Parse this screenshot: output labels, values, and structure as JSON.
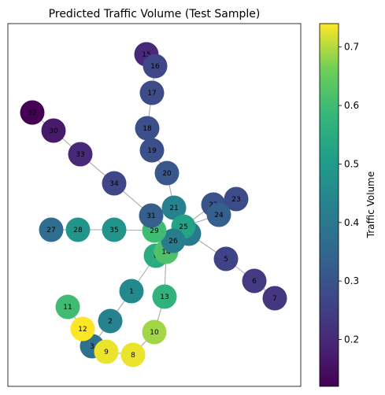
{
  "chart_data": {
    "type": "network",
    "title": "Predicted Traffic Volume (Test Sample)",
    "colorbar": {
      "label": "Traffic Volume",
      "vmin": 0.12,
      "vmax": 0.74,
      "ticks": [
        "0.2",
        "0.3",
        "0.4",
        "0.5",
        "0.6",
        "0.7"
      ],
      "tick_values": [
        0.2,
        0.3,
        0.4,
        0.5,
        0.6,
        0.7
      ],
      "colormap": "viridis"
    },
    "nodes": [
      {
        "id": "0",
        "value": 0.55
      },
      {
        "id": "1",
        "value": 0.45
      },
      {
        "id": "2",
        "value": 0.43
      },
      {
        "id": "3",
        "value": 0.38
      },
      {
        "id": "4",
        "value": 0.4
      },
      {
        "id": "5",
        "value": 0.26
      },
      {
        "id": "6",
        "value": 0.24
      },
      {
        "id": "7",
        "value": 0.23
      },
      {
        "id": "8",
        "value": 0.73
      },
      {
        "id": "9",
        "value": 0.73
      },
      {
        "id": "10",
        "value": 0.69
      },
      {
        "id": "11",
        "value": 0.6
      },
      {
        "id": "12",
        "value": 0.74
      },
      {
        "id": "13",
        "value": 0.57
      },
      {
        "id": "14",
        "value": 0.62
      },
      {
        "id": "15",
        "value": 0.2
      },
      {
        "id": "16",
        "value": 0.27
      },
      {
        "id": "17",
        "value": 0.28
      },
      {
        "id": "18",
        "value": 0.29
      },
      {
        "id": "19",
        "value": 0.29
      },
      {
        "id": "20",
        "value": 0.31
      },
      {
        "id": "21",
        "value": 0.43
      },
      {
        "id": "22",
        "value": 0.3
      },
      {
        "id": "23",
        "value": 0.28
      },
      {
        "id": "24",
        "value": 0.33
      },
      {
        "id": "25",
        "value": 0.52
      },
      {
        "id": "26",
        "value": 0.41
      },
      {
        "id": "27",
        "value": 0.37
      },
      {
        "id": "28",
        "value": 0.48
      },
      {
        "id": "29",
        "value": 0.6
      },
      {
        "id": "30",
        "value": 0.17
      },
      {
        "id": "31",
        "value": 0.33
      },
      {
        "id": "32",
        "value": 0.12
      },
      {
        "id": "33",
        "value": 0.2
      },
      {
        "id": "34",
        "value": 0.27
      },
      {
        "id": "35",
        "value": 0.48
      }
    ],
    "edges": [
      [
        "15",
        "16"
      ],
      [
        "16",
        "17"
      ],
      [
        "17",
        "18"
      ],
      [
        "18",
        "19"
      ],
      [
        "19",
        "20"
      ],
      [
        "20",
        "21"
      ],
      [
        "21",
        "31"
      ],
      [
        "21",
        "25"
      ],
      [
        "32",
        "30"
      ],
      [
        "30",
        "33"
      ],
      [
        "33",
        "34"
      ],
      [
        "34",
        "31"
      ],
      [
        "31",
        "29"
      ],
      [
        "29",
        "26"
      ],
      [
        "26",
        "14"
      ],
      [
        "14",
        "0"
      ],
      [
        "29",
        "35"
      ],
      [
        "35",
        "28"
      ],
      [
        "28",
        "27"
      ],
      [
        "25",
        "22"
      ],
      [
        "25",
        "24"
      ],
      [
        "24",
        "23"
      ],
      [
        "22",
        "23"
      ],
      [
        "25",
        "4"
      ],
      [
        "4",
        "5"
      ],
      [
        "5",
        "6"
      ],
      [
        "6",
        "7"
      ],
      [
        "26",
        "0"
      ],
      [
        "0",
        "1"
      ],
      [
        "1",
        "2"
      ],
      [
        "2",
        "3"
      ],
      [
        "3",
        "12"
      ],
      [
        "12",
        "11"
      ],
      [
        "3",
        "9"
      ],
      [
        "9",
        "8"
      ],
      [
        "8",
        "10"
      ],
      [
        "10",
        "13"
      ],
      [
        "13",
        "14"
      ],
      [
        "25",
        "14"
      ]
    ]
  }
}
